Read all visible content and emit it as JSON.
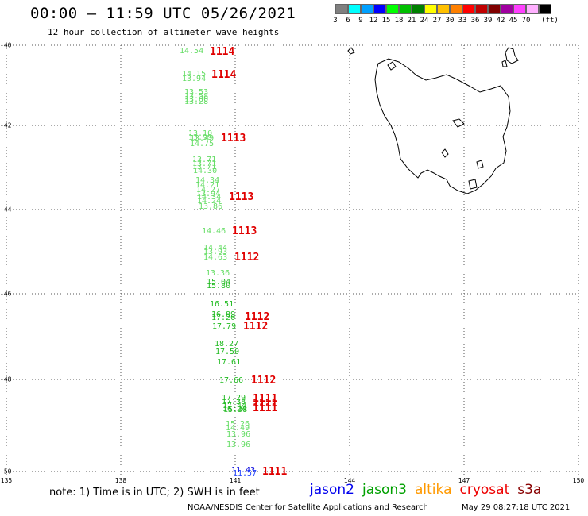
{
  "header": {
    "title": "00:00 – 11:59 UTC 05/26/2021",
    "subtitle": "12 hour collection of altimeter wave heights"
  },
  "color_scale": {
    "unit": "(ft)",
    "entries": [
      {
        "label": "3",
        "color": "#808080"
      },
      {
        "label": "6",
        "color": "#00ffff"
      },
      {
        "label": "9",
        "color": "#00a0ff"
      },
      {
        "label": "12",
        "color": "#0000ff"
      },
      {
        "label": "15",
        "color": "#00ff00"
      },
      {
        "label": "18",
        "color": "#00c000"
      },
      {
        "label": "21",
        "color": "#008000"
      },
      {
        "label": "24",
        "color": "#ffff00"
      },
      {
        "label": "27",
        "color": "#ffc000"
      },
      {
        "label": "30",
        "color": "#ff8000"
      },
      {
        "label": "33",
        "color": "#ff0000"
      },
      {
        "label": "36",
        "color": "#c00000"
      },
      {
        "label": "39",
        "color": "#800000"
      },
      {
        "label": "42",
        "color": "#a000a0"
      },
      {
        "label": "45",
        "color": "#ff40ff"
      },
      {
        "label": "70",
        "color": "#ffb0ff"
      },
      {
        "label": "",
        "color": "#000000"
      }
    ]
  },
  "map": {
    "lat_labels": [
      "-40",
      "-42",
      "-44",
      "-46",
      "-48",
      "-50"
    ],
    "lon_labels": [
      "135",
      "138",
      "141",
      "144",
      "147",
      "150"
    ]
  },
  "observations": [
    {
      "value": "14.54",
      "color": "#66dd66"
    },
    {
      "value": "14.15",
      "color": "#66dd66"
    },
    {
      "value": "13.94",
      "color": "#66dd66"
    },
    {
      "value": "13.53",
      "color": "#66dd66"
    },
    {
      "value": "13.58",
      "color": "#66dd66"
    },
    {
      "value": "13.60",
      "color": "#66dd66"
    },
    {
      "value": "13.28",
      "color": "#66dd66"
    },
    {
      "value": "13.10",
      "color": "#66dd66"
    },
    {
      "value": "13.99",
      "color": "#66dd66"
    },
    {
      "value": "13.49",
      "color": "#66dd66"
    },
    {
      "value": "14.75",
      "color": "#66dd66"
    },
    {
      "value": "13.71",
      "color": "#66dd66"
    },
    {
      "value": "13.71",
      "color": "#66dd66"
    },
    {
      "value": "13.71",
      "color": "#66dd66"
    },
    {
      "value": "14.30",
      "color": "#66dd66"
    },
    {
      "value": "14.34",
      "color": "#66dd66"
    },
    {
      "value": "14.21",
      "color": "#66dd66"
    },
    {
      "value": "14.27",
      "color": "#66dd66"
    },
    {
      "value": "13.94",
      "color": "#66dd66"
    },
    {
      "value": "14.34",
      "color": "#66dd66"
    },
    {
      "value": "14.24",
      "color": "#66dd66"
    },
    {
      "value": "13.86",
      "color": "#66dd66"
    },
    {
      "value": "14.46",
      "color": "#66dd66"
    },
    {
      "value": "14.44",
      "color": "#66dd66"
    },
    {
      "value": "13.93",
      "color": "#66dd66"
    },
    {
      "value": "14.63",
      "color": "#66dd66"
    },
    {
      "value": "13.36",
      "color": "#66dd66"
    },
    {
      "value": "15.04",
      "color": "#22bb22"
    },
    {
      "value": "15.80",
      "color": "#22bb22"
    },
    {
      "value": "16.51",
      "color": "#22bb22"
    },
    {
      "value": "16.89",
      "color": "#22bb22"
    },
    {
      "value": "17.20",
      "color": "#22bb22"
    },
    {
      "value": "17.79",
      "color": "#22bb22"
    },
    {
      "value": "18.27",
      "color": "#22bb22"
    },
    {
      "value": "17.50",
      "color": "#22bb22"
    },
    {
      "value": "17.61",
      "color": "#22bb22"
    },
    {
      "value": "17.66",
      "color": "#22bb22"
    },
    {
      "value": "17.29",
      "color": "#22bb22"
    },
    {
      "value": "17.38",
      "color": "#22bb22"
    },
    {
      "value": "17.44",
      "color": "#22bb22"
    },
    {
      "value": "16.24",
      "color": "#22bb22"
    },
    {
      "value": "15.38",
      "color": "#22bb22"
    },
    {
      "value": "15.26",
      "color": "#66dd66"
    },
    {
      "value": "14.49",
      "color": "#66dd66"
    },
    {
      "value": "13.96",
      "color": "#66dd66"
    },
    {
      "value": "13.96",
      "color": "#66dd66"
    },
    {
      "value": "11.43",
      "color": "#0000dd"
    },
    {
      "value": "11.57",
      "color": "#2244ff"
    }
  ],
  "passes": [
    "1114",
    "1114",
    "1113",
    "1113",
    "1113",
    "1112",
    "1112",
    "1112",
    "1112",
    "1111",
    "1111",
    "1111",
    "1111"
  ],
  "footer": {
    "note": "note: 1) Time is in UTC; 2) SWH is in feet",
    "satellites": [
      {
        "name": "jason2",
        "color": "#0000ee"
      },
      {
        "name": "jason3",
        "color": "#00a000"
      },
      {
        "name": "altika",
        "color": "#ff9900"
      },
      {
        "name": "cryosat",
        "color": "#ee0000"
      },
      {
        "name": "s3a",
        "color": "#880000"
      }
    ],
    "credit": "NOAA/NESDIS Center for Satellite Applications and Research",
    "timestamp": "May 29 08:27:18 UTC 2021"
  }
}
